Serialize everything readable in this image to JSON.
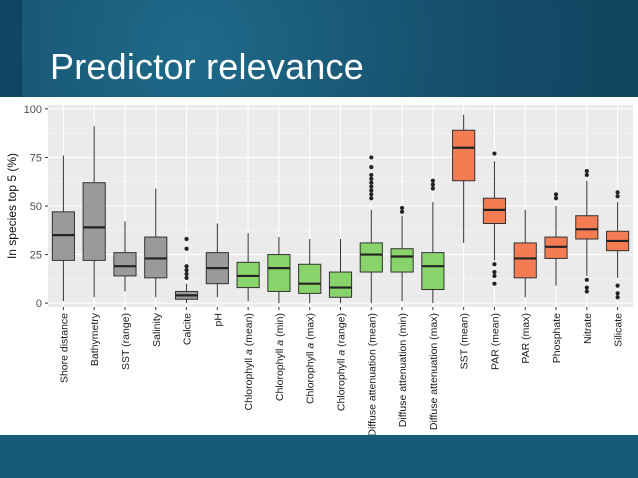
{
  "slide": {
    "title": "Predictor relevance"
  },
  "colors": {
    "gray": "#9a9a9a",
    "green": "#88d36a",
    "orange": "#f47c52"
  },
  "chart_data": {
    "type": "boxplot",
    "title": "",
    "ylabel": "In species top 5 (%)",
    "xlabel": "",
    "ylim": [
      -2,
      102
    ],
    "yticks": [
      0,
      25,
      50,
      75,
      100
    ],
    "grid": true,
    "categories": [
      {
        "label": "Shore distance",
        "group": "gray",
        "min": 1,
        "q1": 22,
        "median": 35,
        "q3": 47,
        "max": 76,
        "outliers": []
      },
      {
        "label": "Bathymetry",
        "group": "gray",
        "min": 3,
        "q1": 22,
        "median": 39,
        "q3": 62,
        "max": 91,
        "outliers": []
      },
      {
        "label": "SST (range)",
        "group": "gray",
        "min": 6,
        "q1": 14,
        "median": 19,
        "q3": 26,
        "max": 42,
        "outliers": []
      },
      {
        "label": "Salinity",
        "group": "gray",
        "min": 3,
        "q1": 13,
        "median": 23,
        "q3": 34,
        "max": 59,
        "outliers": []
      },
      {
        "label": "Calcite",
        "group": "gray",
        "min": 0,
        "q1": 2,
        "median": 4,
        "q3": 6,
        "max": 10,
        "outliers": [
          13,
          15,
          17,
          19,
          28,
          33
        ]
      },
      {
        "label": "pH",
        "group": "gray",
        "min": 3,
        "q1": 10,
        "median": 18,
        "q3": 26,
        "max": 41,
        "outliers": []
      },
      {
        "label": "Chlorophyll a (mean)",
        "label_main": "Chlorophyll ",
        "label_ital": "a",
        "label_tail": " (mean)",
        "group": "green",
        "min": 1,
        "q1": 8,
        "median": 14,
        "q3": 21,
        "max": 36,
        "outliers": []
      },
      {
        "label": "Chlorophyll a (min)",
        "label_main": "Chlorophyll ",
        "label_ital": "a",
        "label_tail": " (min)",
        "group": "green",
        "min": 0,
        "q1": 6,
        "median": 18,
        "q3": 25,
        "max": 34,
        "outliers": []
      },
      {
        "label": "Chlorophyll a (max)",
        "label_main": "Chlorophyll ",
        "label_ital": "a",
        "label_tail": " (max)",
        "group": "green",
        "min": 0,
        "q1": 5,
        "median": 10,
        "q3": 20,
        "max": 33,
        "outliers": []
      },
      {
        "label": "Chlorophyll a (range)",
        "label_main": "Chlorophyll ",
        "label_ital": "a",
        "label_tail": " (range)",
        "group": "green",
        "min": 0,
        "q1": 3,
        "median": 8,
        "q3": 16,
        "max": 33,
        "outliers": []
      },
      {
        "label": "Diffuse attenuation (mean)",
        "group": "green",
        "min": 0,
        "q1": 16,
        "median": 25,
        "q3": 31,
        "max": 48,
        "outliers": [
          54,
          56,
          58,
          60,
          62,
          64,
          66,
          70,
          75
        ]
      },
      {
        "label": "Diffuse attenuation (min)",
        "group": "green",
        "min": 1,
        "q1": 16,
        "median": 24,
        "q3": 28,
        "max": 45,
        "outliers": [
          47,
          49
        ]
      },
      {
        "label": "Diffuse attenuation (max)",
        "group": "green",
        "min": 0,
        "q1": 7,
        "median": 19,
        "q3": 26,
        "max": 52,
        "outliers": [
          59,
          61,
          63
        ]
      },
      {
        "label": "SST (mean)",
        "group": "orange",
        "min": 31,
        "q1": 63,
        "median": 80,
        "q3": 89,
        "max": 97,
        "outliers": []
      },
      {
        "label": "PAR (mean)",
        "group": "orange",
        "min": 22,
        "q1": 41,
        "median": 48,
        "q3": 54,
        "max": 73,
        "outliers": [
          10,
          14,
          16,
          20,
          77
        ]
      },
      {
        "label": "PAR (max)",
        "group": "orange",
        "min": 3,
        "q1": 13,
        "median": 23,
        "q3": 31,
        "max": 48,
        "outliers": []
      },
      {
        "label": "Phosphate",
        "group": "orange",
        "min": 9,
        "q1": 23,
        "median": 29,
        "q3": 34,
        "max": 50,
        "outliers": [
          54,
          56
        ]
      },
      {
        "label": "Nitrate",
        "group": "orange",
        "min": 14,
        "q1": 33,
        "median": 38,
        "q3": 45,
        "max": 63,
        "outliers": [
          6,
          8,
          12,
          66,
          68
        ]
      },
      {
        "label": "Silicate",
        "group": "orange",
        "min": 13,
        "q1": 27,
        "median": 32,
        "q3": 37,
        "max": 52,
        "outliers": [
          3,
          5,
          9,
          55,
          57
        ]
      }
    ]
  }
}
